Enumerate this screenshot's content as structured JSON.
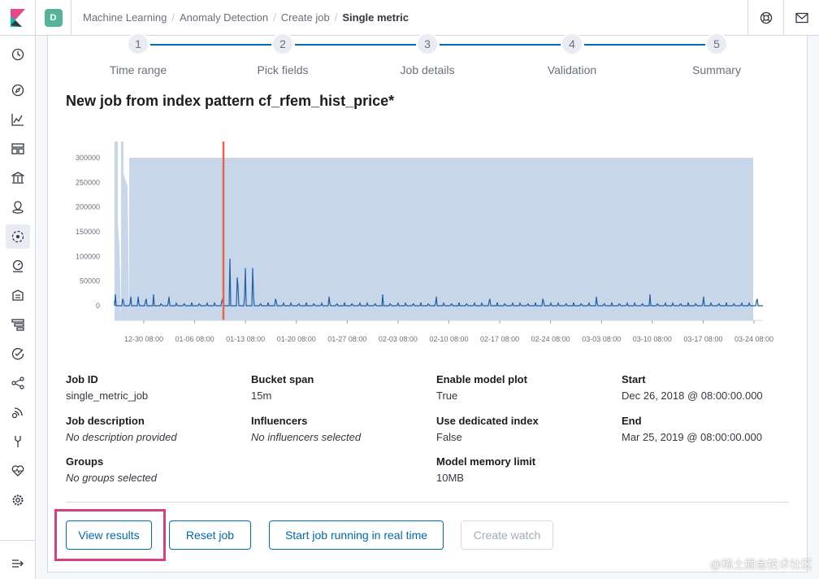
{
  "header": {
    "space_initial": "D",
    "breadcrumbs": [
      "Machine Learning",
      "Anomaly Detection",
      "Create job",
      "Single metric"
    ]
  },
  "sidebar": {
    "icons": [
      "clock-icon",
      "compass-icon",
      "visualize-icon",
      "dashboard-icon",
      "canvas-icon",
      "maps-icon",
      "ml-icon",
      "metrics-icon",
      "logs-icon",
      "apm-icon",
      "uptime-icon",
      "graph-icon",
      "siem-icon",
      "devtools-icon",
      "monitoring-icon",
      "settings-icon",
      "collapse-icon"
    ]
  },
  "steps": [
    {
      "num": "1",
      "label": "Time range"
    },
    {
      "num": "2",
      "label": "Pick fields"
    },
    {
      "num": "3",
      "label": "Job details"
    },
    {
      "num": "4",
      "label": "Validation"
    },
    {
      "num": "5",
      "label": "Summary"
    }
  ],
  "job_title": "New job from index pattern cf_rfem_hist_price*",
  "chart_data": {
    "type": "area",
    "y_ticks": [
      "300000",
      "250000",
      "200000",
      "150000",
      "100000",
      "50000",
      "0"
    ],
    "ylim": [
      0,
      330000
    ],
    "x_ticks": [
      "12-30 08:00",
      "01-06 08:00",
      "01-13 08:00",
      "01-20 08:00",
      "01-27 08:00",
      "02-03 08:00",
      "02-10 08:00",
      "02-17 08:00",
      "02-24 08:00",
      "03-03 08:00",
      "03-10 08:00",
      "03-17 08:00",
      "03-24 08:00"
    ],
    "colors": {
      "band": "#c7d6e8",
      "line": "#1f5fa8",
      "marker": "#e7664c"
    }
  },
  "details": {
    "job_id": {
      "title": "Job ID",
      "value": "single_metric_job"
    },
    "bucket_span": {
      "title": "Bucket span",
      "value": "15m"
    },
    "model_plot": {
      "title": "Enable model plot",
      "value": "True"
    },
    "start": {
      "title": "Start",
      "value": "Dec 26, 2018 @ 08:00:00.000"
    },
    "description": {
      "title": "Job description",
      "value": "No description provided"
    },
    "influencers": {
      "title": "Influencers",
      "value": "No influencers selected"
    },
    "dedicated_index": {
      "title": "Use dedicated index",
      "value": "False"
    },
    "end": {
      "title": "End",
      "value": "Mar 25, 2019 @ 08:00:00.000"
    },
    "groups": {
      "title": "Groups",
      "value": "No groups selected"
    },
    "memory_limit": {
      "title": "Model memory limit",
      "value": "10MB"
    }
  },
  "buttons": {
    "view_results": "View results",
    "reset_job": "Reset job",
    "start_realtime": "Start job running in real time",
    "create_watch": "Create watch"
  },
  "watermark": "@稀土掘金技术社区"
}
